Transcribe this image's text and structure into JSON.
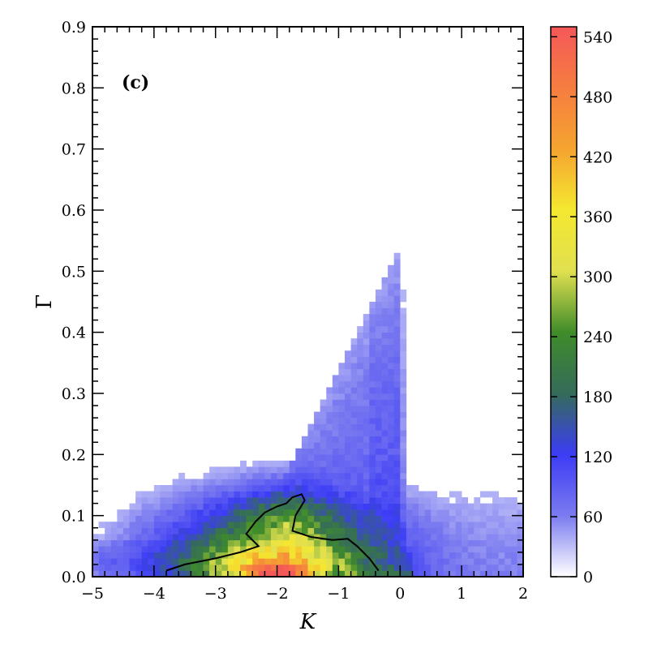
{
  "chart_data": {
    "type": "heatmap",
    "panel_label": "(c)",
    "xlabel": "K",
    "ylabel": "Γ",
    "xlim": [
      -5,
      2
    ],
    "ylim": [
      0,
      0.9
    ],
    "xticks": [
      -5,
      -4,
      -3,
      -2,
      -1,
      0,
      1,
      2
    ],
    "xtick_labels": [
      "−5",
      "−4",
      "−3",
      "−2",
      "−1",
      "0",
      "1",
      "2"
    ],
    "yticks": [
      0.0,
      0.1,
      0.2,
      0.3,
      0.4,
      0.5,
      0.6,
      0.7,
      0.8,
      0.9
    ],
    "ytick_labels": [
      "0.0",
      "0.1",
      "0.2",
      "0.3",
      "0.4",
      "0.5",
      "0.6",
      "0.7",
      "0.8",
      "0.9"
    ],
    "colorbar": {
      "min": 0,
      "max": 550,
      "ticks": [
        0,
        60,
        120,
        180,
        240,
        300,
        360,
        420,
        480,
        540
      ],
      "tick_labels": [
        "0",
        "60",
        "120",
        "180",
        "240",
        "300",
        "360",
        "420",
        "480",
        "540"
      ],
      "colors": [
        "#ffffff",
        "#7b7bf0",
        "#3c3cf5",
        "#356b5a",
        "#3f8c2a",
        "#e0e050",
        "#f5e830",
        "#f5a430",
        "#f57d40",
        "#f55858"
      ]
    },
    "bins": {
      "dk": 0.1,
      "dg": 0.01
    },
    "density_peak": {
      "K": -2.0,
      "Gamma": 0.005,
      "count": 540
    },
    "contour": [
      [
        -3.8,
        0.01
      ],
      [
        -3.5,
        0.02
      ],
      [
        -3.0,
        0.03
      ],
      [
        -2.6,
        0.04
      ],
      [
        -2.3,
        0.05
      ],
      [
        -2.5,
        0.07
      ],
      [
        -2.35,
        0.09
      ],
      [
        -2.2,
        0.105
      ],
      [
        -2.0,
        0.115
      ],
      [
        -1.85,
        0.12
      ],
      [
        -1.75,
        0.13
      ],
      [
        -1.6,
        0.135
      ],
      [
        -1.55,
        0.125
      ],
      [
        -1.7,
        0.1
      ],
      [
        -1.75,
        0.075
      ],
      [
        -1.45,
        0.065
      ],
      [
        -1.1,
        0.06
      ],
      [
        -0.85,
        0.062
      ],
      [
        -0.7,
        0.05
      ],
      [
        -0.5,
        0.03
      ],
      [
        -0.35,
        0.01
      ]
    ],
    "grid": false,
    "legend": "colorbar-right"
  }
}
